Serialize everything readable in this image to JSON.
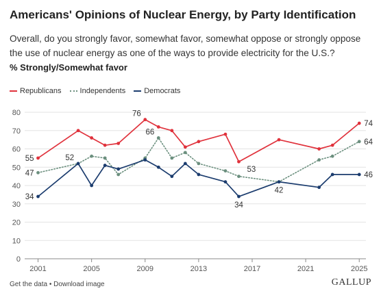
{
  "header": {
    "title": "Americans' Opinions of Nuclear Energy, by Party Identification",
    "subtitle": "Overall, do you strongly favor, somewhat favor, somewhat oppose or strongly oppose the use of nuclear energy as one of the ways to provide electricity for the U.S.?",
    "measure": "% Strongly/Somewhat favor"
  },
  "footer": {
    "get_data": "Get the data",
    "separator": " • ",
    "download": "Download image",
    "brand": "GALLUP"
  },
  "chart_data": {
    "type": "line",
    "xlim": [
      2000,
      2025.5
    ],
    "ylim": [
      0,
      80
    ],
    "x_ticks": [
      2001,
      2005,
      2009,
      2013,
      2017,
      2021,
      2025
    ],
    "y_ticks": [
      0,
      10,
      20,
      30,
      40,
      50,
      60,
      70,
      80
    ],
    "grid": true,
    "legend_position": "top-left",
    "series": [
      {
        "name": "Republicans",
        "color": "#e0323c",
        "style": "solid",
        "points": [
          [
            2001,
            55
          ],
          [
            2004,
            70
          ],
          [
            2005,
            66
          ],
          [
            2006,
            62
          ],
          [
            2007,
            63
          ],
          [
            2009,
            76
          ],
          [
            2010,
            72
          ],
          [
            2011,
            70
          ],
          [
            2012,
            61
          ],
          [
            2013,
            64
          ],
          [
            2015,
            68
          ],
          [
            2016,
            53
          ],
          [
            2019,
            65
          ],
          [
            2022,
            60
          ],
          [
            2023,
            62
          ],
          [
            2025,
            74
          ]
        ]
      },
      {
        "name": "Independents",
        "color": "#6b8f7e",
        "style": "dotted",
        "points": [
          [
            2001,
            47
          ],
          [
            2004,
            52
          ],
          [
            2005,
            56
          ],
          [
            2006,
            55
          ],
          [
            2007,
            46
          ],
          [
            2009,
            55
          ],
          [
            2010,
            66
          ],
          [
            2011,
            55
          ],
          [
            2012,
            58
          ],
          [
            2013,
            52
          ],
          [
            2015,
            48
          ],
          [
            2016,
            45
          ],
          [
            2019,
            42
          ],
          [
            2022,
            54
          ],
          [
            2023,
            56
          ],
          [
            2025,
            64
          ]
        ]
      },
      {
        "name": "Democrats",
        "color": "#1b3c6e",
        "style": "solid",
        "points": [
          [
            2001,
            34
          ],
          [
            2004,
            52
          ],
          [
            2005,
            40
          ],
          [
            2006,
            51
          ],
          [
            2007,
            49
          ],
          [
            2009,
            54
          ],
          [
            2010,
            50
          ],
          [
            2011,
            45
          ],
          [
            2012,
            52
          ],
          [
            2013,
            46
          ],
          [
            2015,
            42
          ],
          [
            2016,
            34
          ],
          [
            2019,
            42
          ],
          [
            2022,
            39
          ],
          [
            2023,
            46
          ],
          [
            2025,
            46
          ]
        ]
      }
    ],
    "labels": [
      {
        "x": 2001,
        "y": 55,
        "text": "55",
        "side": "left"
      },
      {
        "x": 2001,
        "y": 47,
        "text": "47",
        "side": "left"
      },
      {
        "x": 2001,
        "y": 34,
        "text": "34",
        "side": "left"
      },
      {
        "x": 2004,
        "y": 52,
        "text": "52",
        "side": "above-left"
      },
      {
        "x": 2009,
        "y": 76,
        "text": "76",
        "side": "above-left"
      },
      {
        "x": 2010,
        "y": 66,
        "text": "66",
        "side": "above-left"
      },
      {
        "x": 2016,
        "y": 53,
        "text": "53",
        "side": "below-right"
      },
      {
        "x": 2016,
        "y": 34,
        "text": "34",
        "side": "below"
      },
      {
        "x": 2019,
        "y": 42,
        "text": "42",
        "side": "below"
      },
      {
        "x": 2025,
        "y": 74,
        "text": "74",
        "side": "right"
      },
      {
        "x": 2025,
        "y": 64,
        "text": "64",
        "side": "right"
      },
      {
        "x": 2025,
        "y": 46,
        "text": "46",
        "side": "right"
      }
    ]
  }
}
